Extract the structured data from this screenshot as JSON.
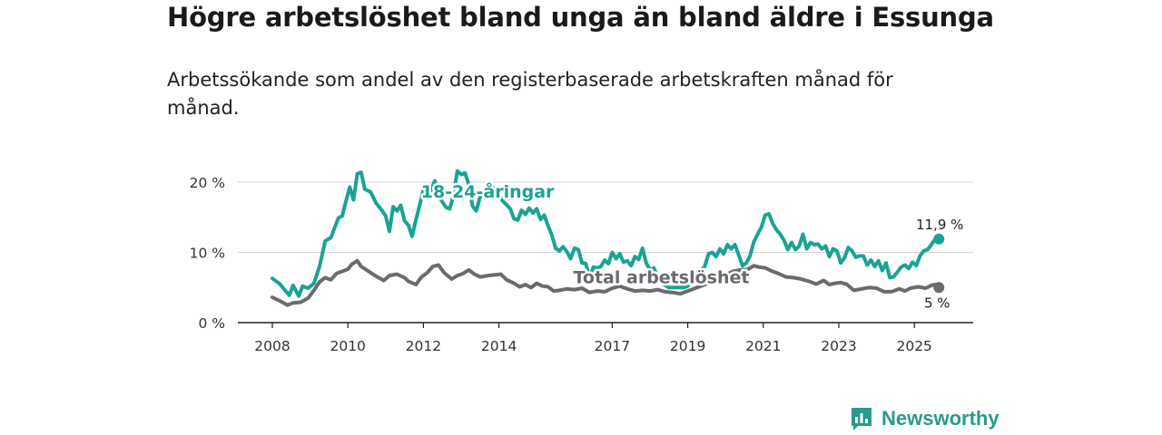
{
  "title": "Högre arbetslöshet bland unga än bland äldre i Essunga",
  "subtitle": "Arbetssökande som andel av den registerbaserade arbetskraften månad för månad.",
  "brand": {
    "name": "Newsworthy",
    "color": "#2a9a8a"
  },
  "chart_data": {
    "type": "line",
    "title": "Högre arbetslöshet bland unga än bland äldre i Essunga",
    "xlabel": "",
    "ylabel": "",
    "xlim": [
      2007.9,
      2026.1
    ],
    "ylim": [
      0,
      20
    ],
    "grid": true,
    "y_ticks": [
      {
        "value": 0,
        "label": "0 %"
      },
      {
        "value": 10,
        "label": "10 %"
      },
      {
        "value": 20,
        "label": "20 %"
      }
    ],
    "x_ticks": [
      {
        "value": 2008,
        "label": "2008"
      },
      {
        "value": 2010,
        "label": "2010"
      },
      {
        "value": 2012,
        "label": "2012"
      },
      {
        "value": 2014,
        "label": "2014"
      },
      {
        "value": 2017,
        "label": "2017"
      },
      {
        "value": 2019,
        "label": "2019"
      },
      {
        "value": 2021,
        "label": "2021"
      },
      {
        "value": 2023,
        "label": "2023"
      },
      {
        "value": 2025,
        "label": "2025"
      }
    ],
    "series": [
      {
        "name": "18-24-åringar",
        "color": "#1aa395",
        "label_pos": [
          2013.7,
          17.8
        ],
        "end_label": "11,9 %",
        "points": [
          [
            2008.0,
            6.3
          ],
          [
            2008.2,
            5.5
          ],
          [
            2008.35,
            4.5
          ],
          [
            2008.45,
            3.9
          ],
          [
            2008.55,
            5.3
          ],
          [
            2008.7,
            3.8
          ],
          [
            2008.8,
            5.2
          ],
          [
            2008.95,
            4.9
          ],
          [
            2009.1,
            5.6
          ],
          [
            2009.25,
            8.0
          ],
          [
            2009.4,
            11.6
          ],
          [
            2009.55,
            12.1
          ],
          [
            2009.65,
            13.5
          ],
          [
            2009.75,
            14.9
          ],
          [
            2009.85,
            15.2
          ],
          [
            2009.95,
            17.3
          ],
          [
            2010.05,
            19.3
          ],
          [
            2010.15,
            17.5
          ],
          [
            2010.25,
            21.2
          ],
          [
            2010.35,
            21.4
          ],
          [
            2010.45,
            19.0
          ],
          [
            2010.6,
            18.6
          ],
          [
            2010.75,
            17.0
          ],
          [
            2010.9,
            16.0
          ],
          [
            2011.0,
            15.2
          ],
          [
            2011.1,
            13.0
          ],
          [
            2011.2,
            16.5
          ],
          [
            2011.3,
            15.9
          ],
          [
            2011.4,
            16.7
          ],
          [
            2011.5,
            14.5
          ],
          [
            2011.6,
            13.9
          ],
          [
            2011.7,
            12.3
          ],
          [
            2011.8,
            14.6
          ],
          [
            2011.9,
            16.7
          ],
          [
            2012.0,
            18.9
          ],
          [
            2012.1,
            19.4
          ],
          [
            2012.2,
            18.8
          ],
          [
            2012.3,
            20.2
          ],
          [
            2012.4,
            18.1
          ],
          [
            2012.5,
            17.2
          ],
          [
            2012.6,
            16.4
          ],
          [
            2012.7,
            16.2
          ],
          [
            2012.8,
            18.3
          ],
          [
            2012.9,
            21.6
          ],
          [
            2013.0,
            21.1
          ],
          [
            2013.1,
            21.3
          ],
          [
            2013.2,
            19.7
          ],
          [
            2013.3,
            16.6
          ],
          [
            2013.4,
            15.9
          ],
          [
            2013.5,
            17.9
          ],
          [
            2013.65,
            18.5
          ],
          [
            2013.8,
            19.6
          ],
          [
            2013.95,
            18.5
          ],
          [
            2014.1,
            17.3
          ],
          [
            2014.2,
            16.8
          ],
          [
            2014.3,
            16.2
          ],
          [
            2014.4,
            14.8
          ],
          [
            2014.5,
            14.6
          ],
          [
            2014.6,
            16.0
          ],
          [
            2014.7,
            15.4
          ],
          [
            2014.8,
            16.3
          ],
          [
            2014.9,
            15.6
          ],
          [
            2015.0,
            16.2
          ],
          [
            2015.1,
            14.7
          ],
          [
            2015.2,
            15.3
          ],
          [
            2015.3,
            13.8
          ],
          [
            2015.4,
            12.5
          ],
          [
            2015.5,
            10.6
          ],
          [
            2015.6,
            10.2
          ],
          [
            2015.7,
            10.8
          ],
          [
            2015.8,
            10.1
          ],
          [
            2015.9,
            9.1
          ],
          [
            2016.0,
            10.6
          ],
          [
            2016.1,
            10.4
          ],
          [
            2016.2,
            8.5
          ],
          [
            2016.3,
            8.4
          ],
          [
            2016.4,
            6.4
          ],
          [
            2016.5,
            7.9
          ],
          [
            2016.6,
            7.8
          ],
          [
            2016.7,
            8.0
          ],
          [
            2016.8,
            8.9
          ],
          [
            2016.9,
            8.4
          ],
          [
            2017.0,
            10.0
          ],
          [
            2017.1,
            9.1
          ],
          [
            2017.2,
            9.8
          ],
          [
            2017.3,
            8.6
          ],
          [
            2017.4,
            8.8
          ],
          [
            2017.5,
            8.1
          ],
          [
            2017.6,
            9.4
          ],
          [
            2017.7,
            9.0
          ],
          [
            2017.8,
            10.6
          ],
          [
            2017.9,
            8.5
          ],
          [
            2018.0,
            7.5
          ],
          [
            2018.1,
            7.8
          ],
          [
            2018.2,
            6.5
          ],
          [
            2018.35,
            5.5
          ],
          [
            2018.5,
            5.0
          ],
          [
            2018.7,
            5.0
          ],
          [
            2018.9,
            5.0
          ],
          [
            2019.0,
            5.2
          ],
          [
            2019.15,
            6.3
          ],
          [
            2019.3,
            7.2
          ],
          [
            2019.45,
            8.0
          ],
          [
            2019.55,
            9.8
          ],
          [
            2019.65,
            10.0
          ],
          [
            2019.75,
            9.4
          ],
          [
            2019.85,
            10.5
          ],
          [
            2019.95,
            9.8
          ],
          [
            2020.05,
            11.1
          ],
          [
            2020.15,
            10.5
          ],
          [
            2020.25,
            11.1
          ],
          [
            2020.35,
            9.6
          ],
          [
            2020.45,
            8.1
          ],
          [
            2020.55,
            8.5
          ],
          [
            2020.65,
            9.5
          ],
          [
            2020.75,
            11.5
          ],
          [
            2020.85,
            12.6
          ],
          [
            2020.95,
            13.6
          ],
          [
            2021.05,
            15.3
          ],
          [
            2021.15,
            15.5
          ],
          [
            2021.25,
            14.1
          ],
          [
            2021.35,
            13.2
          ],
          [
            2021.45,
            12.6
          ],
          [
            2021.55,
            11.7
          ],
          [
            2021.65,
            10.4
          ],
          [
            2021.75,
            11.4
          ],
          [
            2021.85,
            10.4
          ],
          [
            2021.95,
            10.9
          ],
          [
            2022.05,
            12.6
          ],
          [
            2022.15,
            10.5
          ],
          [
            2022.25,
            11.4
          ],
          [
            2022.35,
            11.1
          ],
          [
            2022.45,
            11.2
          ],
          [
            2022.55,
            10.5
          ],
          [
            2022.65,
            10.9
          ],
          [
            2022.75,
            9.4
          ],
          [
            2022.85,
            10.5
          ],
          [
            2022.95,
            10.2
          ],
          [
            2023.05,
            8.5
          ],
          [
            2023.15,
            9.2
          ],
          [
            2023.25,
            10.7
          ],
          [
            2023.35,
            10.2
          ],
          [
            2023.45,
            9.3
          ],
          [
            2023.55,
            9.5
          ],
          [
            2023.65,
            9.5
          ],
          [
            2023.75,
            8.2
          ],
          [
            2023.85,
            8.9
          ],
          [
            2023.95,
            8.0
          ],
          [
            2024.05,
            8.8
          ],
          [
            2024.15,
            7.4
          ],
          [
            2024.25,
            8.5
          ],
          [
            2024.35,
            6.4
          ],
          [
            2024.45,
            6.5
          ],
          [
            2024.55,
            7.2
          ],
          [
            2024.65,
            7.9
          ],
          [
            2024.75,
            8.2
          ],
          [
            2024.85,
            7.7
          ],
          [
            2024.95,
            8.6
          ],
          [
            2025.05,
            8.1
          ],
          [
            2025.15,
            9.5
          ],
          [
            2025.25,
            10.2
          ],
          [
            2025.35,
            10.4
          ],
          [
            2025.45,
            11.1
          ],
          [
            2025.55,
            11.9
          ],
          [
            2025.65,
            11.9
          ]
        ]
      },
      {
        "name": "Total arbetslöshet",
        "color": "#6b6a70",
        "label_pos": [
          2018.3,
          5.6
        ],
        "end_label": "5 %",
        "points": [
          [
            2008.0,
            3.6
          ],
          [
            2008.2,
            3.1
          ],
          [
            2008.4,
            2.5
          ],
          [
            2008.55,
            2.8
          ],
          [
            2008.75,
            2.9
          ],
          [
            2008.95,
            3.5
          ],
          [
            2009.1,
            4.6
          ],
          [
            2009.25,
            5.8
          ],
          [
            2009.4,
            6.4
          ],
          [
            2009.55,
            6.1
          ],
          [
            2009.7,
            7.0
          ],
          [
            2009.85,
            7.3
          ],
          [
            2010.0,
            7.6
          ],
          [
            2010.1,
            8.3
          ],
          [
            2010.25,
            8.8
          ],
          [
            2010.35,
            8.0
          ],
          [
            2010.55,
            7.3
          ],
          [
            2010.75,
            6.6
          ],
          [
            2010.95,
            6.0
          ],
          [
            2011.1,
            6.7
          ],
          [
            2011.3,
            6.9
          ],
          [
            2011.5,
            6.4
          ],
          [
            2011.6,
            5.9
          ],
          [
            2011.8,
            5.4
          ],
          [
            2011.95,
            6.5
          ],
          [
            2012.1,
            7.1
          ],
          [
            2012.25,
            8.0
          ],
          [
            2012.4,
            8.2
          ],
          [
            2012.55,
            7.1
          ],
          [
            2012.75,
            6.2
          ],
          [
            2012.9,
            6.7
          ],
          [
            2013.05,
            7.0
          ],
          [
            2013.2,
            7.5
          ],
          [
            2013.35,
            6.9
          ],
          [
            2013.5,
            6.5
          ],
          [
            2013.7,
            6.7
          ],
          [
            2013.9,
            6.8
          ],
          [
            2014.05,
            6.9
          ],
          [
            2014.2,
            6.1
          ],
          [
            2014.4,
            5.6
          ],
          [
            2014.55,
            5.1
          ],
          [
            2014.7,
            5.4
          ],
          [
            2014.85,
            5.0
          ],
          [
            2015.0,
            5.6
          ],
          [
            2015.15,
            5.2
          ],
          [
            2015.3,
            5.1
          ],
          [
            2015.45,
            4.5
          ],
          [
            2015.6,
            4.6
          ],
          [
            2015.8,
            4.8
          ],
          [
            2016.0,
            4.7
          ],
          [
            2016.2,
            4.9
          ],
          [
            2016.4,
            4.3
          ],
          [
            2016.6,
            4.5
          ],
          [
            2016.8,
            4.4
          ],
          [
            2017.0,
            4.9
          ],
          [
            2017.2,
            5.2
          ],
          [
            2017.4,
            4.8
          ],
          [
            2017.6,
            4.5
          ],
          [
            2017.8,
            4.6
          ],
          [
            2018.0,
            4.5
          ],
          [
            2018.2,
            4.7
          ],
          [
            2018.4,
            4.4
          ],
          [
            2018.6,
            4.3
          ],
          [
            2018.8,
            4.1
          ],
          [
            2019.0,
            4.5
          ],
          [
            2019.2,
            4.9
          ],
          [
            2019.4,
            5.3
          ],
          [
            2019.6,
            5.8
          ],
          [
            2019.8,
            6.4
          ],
          [
            2020.0,
            6.8
          ],
          [
            2020.2,
            7.3
          ],
          [
            2020.4,
            7.5
          ],
          [
            2020.6,
            7.6
          ],
          [
            2020.75,
            8.1
          ],
          [
            2020.9,
            7.9
          ],
          [
            2021.05,
            7.8
          ],
          [
            2021.2,
            7.4
          ],
          [
            2021.4,
            7.0
          ],
          [
            2021.6,
            6.5
          ],
          [
            2021.8,
            6.4
          ],
          [
            2022.0,
            6.2
          ],
          [
            2022.2,
            5.9
          ],
          [
            2022.4,
            5.5
          ],
          [
            2022.6,
            6.0
          ],
          [
            2022.75,
            5.4
          ],
          [
            2022.9,
            5.6
          ],
          [
            2023.05,
            5.7
          ],
          [
            2023.2,
            5.5
          ],
          [
            2023.4,
            4.6
          ],
          [
            2023.6,
            4.8
          ],
          [
            2023.8,
            5.0
          ],
          [
            2024.0,
            4.9
          ],
          [
            2024.2,
            4.4
          ],
          [
            2024.4,
            4.4
          ],
          [
            2024.6,
            4.8
          ],
          [
            2024.75,
            4.5
          ],
          [
            2024.9,
            4.9
          ],
          [
            2025.1,
            5.1
          ],
          [
            2025.3,
            4.9
          ],
          [
            2025.45,
            5.3
          ],
          [
            2025.55,
            5.4
          ],
          [
            2025.65,
            5.0
          ]
        ]
      }
    ]
  }
}
